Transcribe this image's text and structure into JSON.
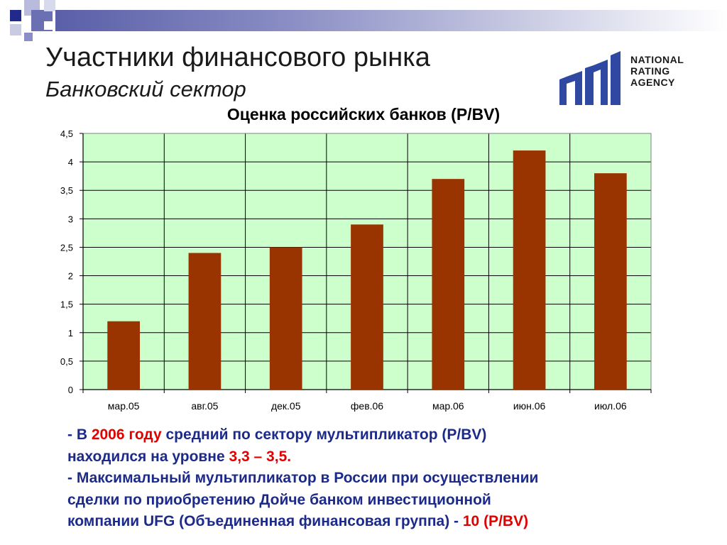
{
  "slide": {
    "title": "Участники финансового рынка",
    "subtitle": "Банковский сектор"
  },
  "logo": {
    "icon": "nra-logo-icon",
    "line1": "NATIONAL",
    "line2": "RATING",
    "line3": "AGENCY",
    "color": "#2f49a3"
  },
  "chart_data": {
    "type": "bar",
    "title": "Оценка российских банков (P/BV)",
    "categories": [
      "мар.05",
      "авг.05",
      "дек.05",
      "фев.06",
      "мар.06",
      "июн.06",
      "июл.06"
    ],
    "values": [
      1.2,
      2.4,
      2.5,
      2.9,
      3.7,
      4.2,
      3.8
    ],
    "yticks": [
      "0",
      "0,5",
      "1",
      "1,5",
      "2",
      "2,5",
      "3",
      "3,5",
      "4",
      "4,5"
    ],
    "ylim": [
      0,
      4.5
    ],
    "grid": true,
    "legend": "none",
    "bar_color": "#993300",
    "plot_background": "#ccffcc"
  },
  "notes": {
    "line1_prefix": "- В ",
    "line1_highlight": "2006 году",
    "line1_suffix": " средний по сектору мультипликатор (P/BV)",
    "line2_prefix": "находился на уровне ",
    "line2_highlight": "3,3 – 3,5.",
    "line3": "- Максимальный мультипликатор в России при осуществлении",
    "line4": "сделки по приобретению Дойче банком инвестиционной",
    "line5_prefix": "компании UFG (Объединенная финансовая группа) - ",
    "line5_highlight": "10",
    "line5_suffix": "(P/BV)",
    "highlight_color": "#e00000",
    "text_color": "#1c2a8a"
  }
}
